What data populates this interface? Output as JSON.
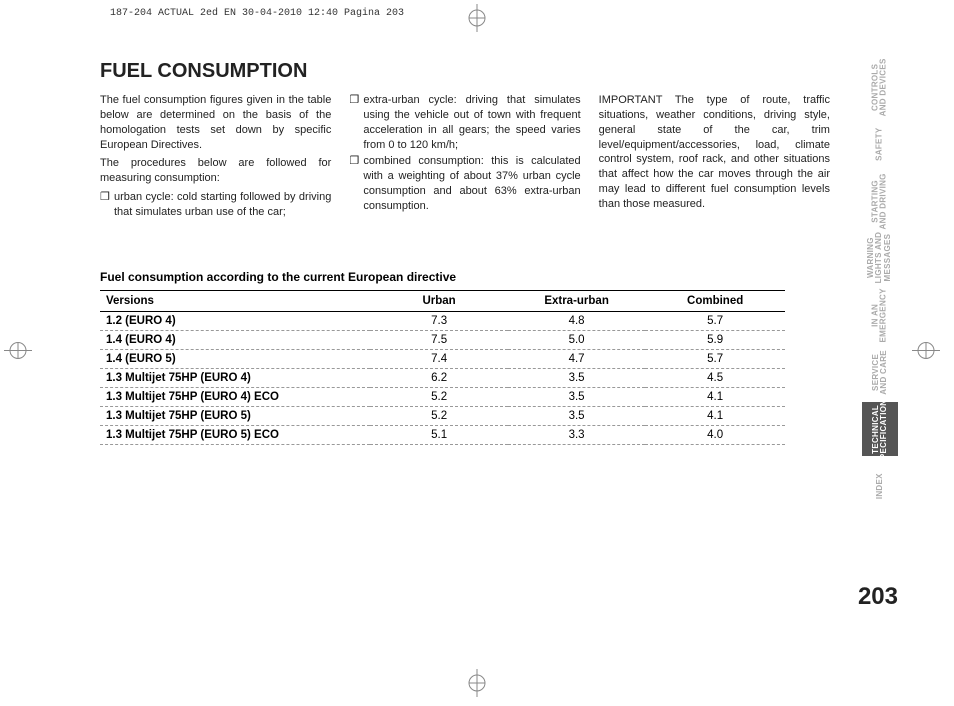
{
  "header_info": "187-204 ACTUAL 2ed EN  30-04-2010  12:40  Pagina 203",
  "title": "FUEL CONSUMPTION",
  "col1": {
    "p1": "The fuel consumption figures given in the table below are determined on the basis of the homologation tests set down by specific European Directives.",
    "p2": "The procedures below are followed for measuring consumption:",
    "b1": "urban cycle: cold starting followed by driving that simulates urban use of the car;"
  },
  "col2": {
    "b1": "extra-urban cycle: driving that simulates using the vehicle out of town with frequent acceleration in all gears; the speed varies from 0 to 120 km/h;",
    "b2": "combined consumption: this is calculated with a weighting of about 37% urban cycle consumption and about 63% extra-urban consumption."
  },
  "col3": {
    "p1": "IMPORTANT The type of route, traffic situations, weather conditions, driving style, general state of the car, trim level/equipment/accessories, load, climate control system, roof rack, and other situations that affect how the car moves through the air may lead to different fuel consumption levels than those measured."
  },
  "table": {
    "caption": "Fuel consumption according to the current European directive",
    "columns": [
      "Versions",
      "Urban",
      "Extra-urban",
      "Combined"
    ],
    "rows": [
      [
        "1.2 (EURO 4)",
        "7.3",
        "4.8",
        "5.7"
      ],
      [
        "1.4 (EURO 4)",
        "7.5",
        "5.0",
        "5.9"
      ],
      [
        "1.4 (EURO 5)",
        "7.4",
        "4.7",
        "5.7"
      ],
      [
        "1.3 Multijet 75HP (EURO 4)",
        "6.2",
        "3.5",
        "4.5"
      ],
      [
        "1.3 Multijet 75HP (EURO 4) ECO",
        "5.2",
        "3.5",
        "4.1"
      ],
      [
        "1.3 Multijet 75HP (EURO 5)",
        "5.2",
        "3.5",
        "4.1"
      ],
      [
        "1.3 Multijet 75HP (EURO 5) ECO",
        "5.1",
        "3.3",
        "4.0"
      ]
    ]
  },
  "tabs": [
    "CONTROLS<br>AND DEVICES",
    "SAFETY",
    "STARTING<br>AND DRIVING",
    "WARNING<br>LIGHTS AND<br>MESSAGES",
    "IN AN<br>EMERGENCY",
    "SERVICE<br>AND CARE",
    "TECHNICAL<br>SPECIFICATIONS",
    "INDEX"
  ],
  "active_tab_index": 6,
  "page_number": "203",
  "bullet_mark": "❐"
}
